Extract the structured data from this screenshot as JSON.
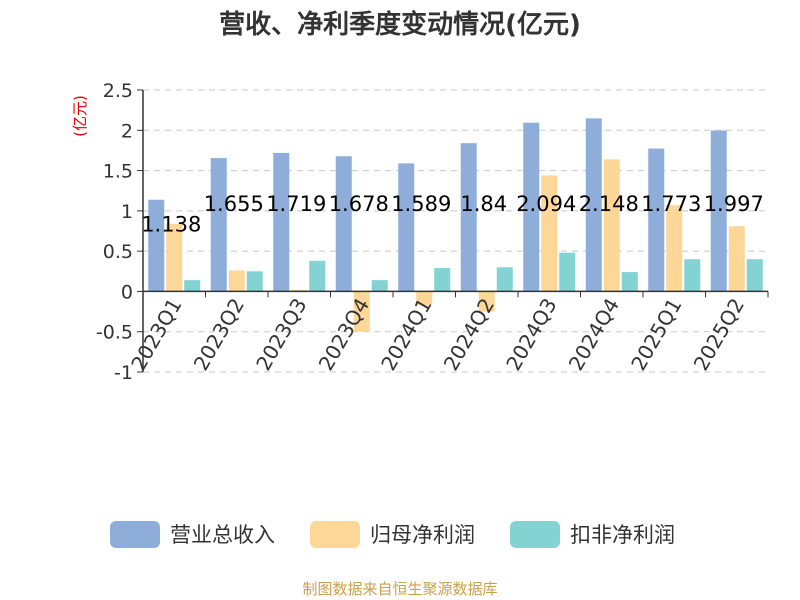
{
  "chart_data": {
    "type": "bar",
    "title": "营收、净利季度变动情况(亿元)",
    "unit_label": "(亿元)",
    "categories": [
      "2023Q1",
      "2023Q2",
      "2023Q3",
      "2023Q4",
      "2024Q1",
      "2024Q2",
      "2024Q3",
      "2024Q4",
      "2025Q1",
      "2025Q2"
    ],
    "series": [
      {
        "name": "营业总收入",
        "color": "#8eadd9",
        "values": [
          1.138,
          1.655,
          1.719,
          1.678,
          1.589,
          1.84,
          2.094,
          2.148,
          1.773,
          1.997
        ]
      },
      {
        "name": "归母净利润",
        "color": "#fdd797",
        "values": [
          0.84,
          0.26,
          0.02,
          -0.5,
          -0.17,
          -0.25,
          1.44,
          1.64,
          1.07,
          0.81
        ]
      },
      {
        "name": "扣非净利润",
        "color": "#83d3d3",
        "values": [
          0.14,
          0.25,
          0.38,
          0.14,
          0.29,
          0.3,
          0.48,
          0.24,
          0.4,
          0.4
        ]
      }
    ],
    "data_labels": [
      "1.138",
      "1.655",
      "1.719",
      "1.678",
      "1.589",
      "1.84",
      "2.094",
      "2.148",
      "1.773",
      "1.997"
    ],
    "ylim": [
      -1,
      2.5
    ],
    "yticks": [
      "2.5",
      "2",
      "1.5",
      "1",
      "0.5",
      "0",
      "-0.5",
      "-1"
    ],
    "grid": true,
    "legend_position": "bottom",
    "source": "制图数据来自恒生聚源数据库"
  }
}
